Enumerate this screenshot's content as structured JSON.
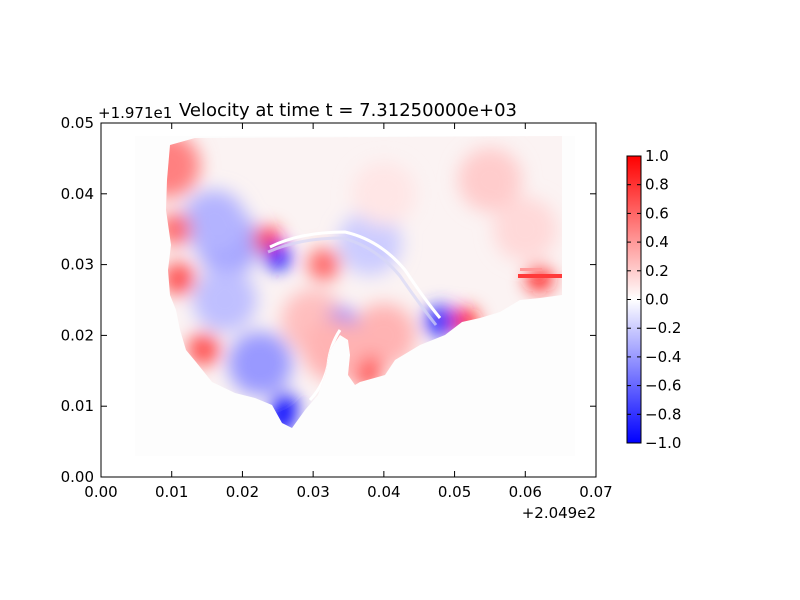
{
  "chart_data": {
    "type": "heatmap",
    "title": "Velocity at time t = 7.31250000e+03",
    "xlabel": "",
    "ylabel": "",
    "xlim": [
      0.0,
      0.07
    ],
    "ylim": [
      0.0,
      0.05
    ],
    "x_offset_label": "+2.049e2",
    "y_offset_label": "+1.971e1",
    "x_ticks": [
      "0.00",
      "0.01",
      "0.02",
      "0.03",
      "0.04",
      "0.05",
      "0.06",
      "0.07"
    ],
    "y_ticks": [
      "0.00",
      "0.01",
      "0.02",
      "0.03",
      "0.04",
      "0.05"
    ],
    "colorbar": {
      "colormap": "bwr",
      "range": [
        -1.0,
        1.0
      ],
      "ticks": [
        "1.0",
        "0.8",
        "0.6",
        "0.4",
        "0.2",
        "0.0",
        "−0.2",
        "−0.4",
        "−0.6",
        "−0.8",
        "−1.0"
      ]
    },
    "features": [
      {
        "x": 0.026,
        "y": 0.01,
        "value": -1.0
      },
      {
        "x": 0.0255,
        "y": 0.008,
        "value": -1.0
      },
      {
        "x": 0.018,
        "y": 0.033,
        "value": -0.35
      },
      {
        "x": 0.0175,
        "y": 0.025,
        "value": -0.25
      },
      {
        "x": 0.016,
        "y": 0.036,
        "value": -0.3
      },
      {
        "x": 0.03,
        "y": 0.022,
        "value": 0.25
      },
      {
        "x": 0.0315,
        "y": 0.03,
        "value": 0.6
      },
      {
        "x": 0.0235,
        "y": 0.0335,
        "value": 0.9
      },
      {
        "x": 0.025,
        "y": 0.031,
        "value": -0.9
      },
      {
        "x": 0.038,
        "y": 0.033,
        "value": -0.2
      },
      {
        "x": 0.04,
        "y": 0.04,
        "value": 0.1
      },
      {
        "x": 0.055,
        "y": 0.042,
        "value": 0.2
      },
      {
        "x": 0.06,
        "y": 0.035,
        "value": 0.15
      },
      {
        "x": 0.062,
        "y": 0.028,
        "value": 0.9
      },
      {
        "x": 0.048,
        "y": 0.022,
        "value": -0.8
      },
      {
        "x": 0.0515,
        "y": 0.022,
        "value": 0.9
      },
      {
        "x": 0.04,
        "y": 0.02,
        "value": 0.3
      },
      {
        "x": 0.0375,
        "y": 0.015,
        "value": 0.7
      },
      {
        "x": 0.034,
        "y": 0.0215,
        "value": -0.6
      },
      {
        "x": 0.0145,
        "y": 0.018,
        "value": 0.7
      },
      {
        "x": 0.011,
        "y": 0.028,
        "value": 0.7
      },
      {
        "x": 0.0105,
        "y": 0.035,
        "value": 0.6
      },
      {
        "x": 0.0095,
        "y": 0.044,
        "value": 0.5
      },
      {
        "x": 0.0225,
        "y": 0.016,
        "value": -0.4
      },
      {
        "x": 0.033,
        "y": 0.018,
        "value": 0.3
      }
    ]
  }
}
